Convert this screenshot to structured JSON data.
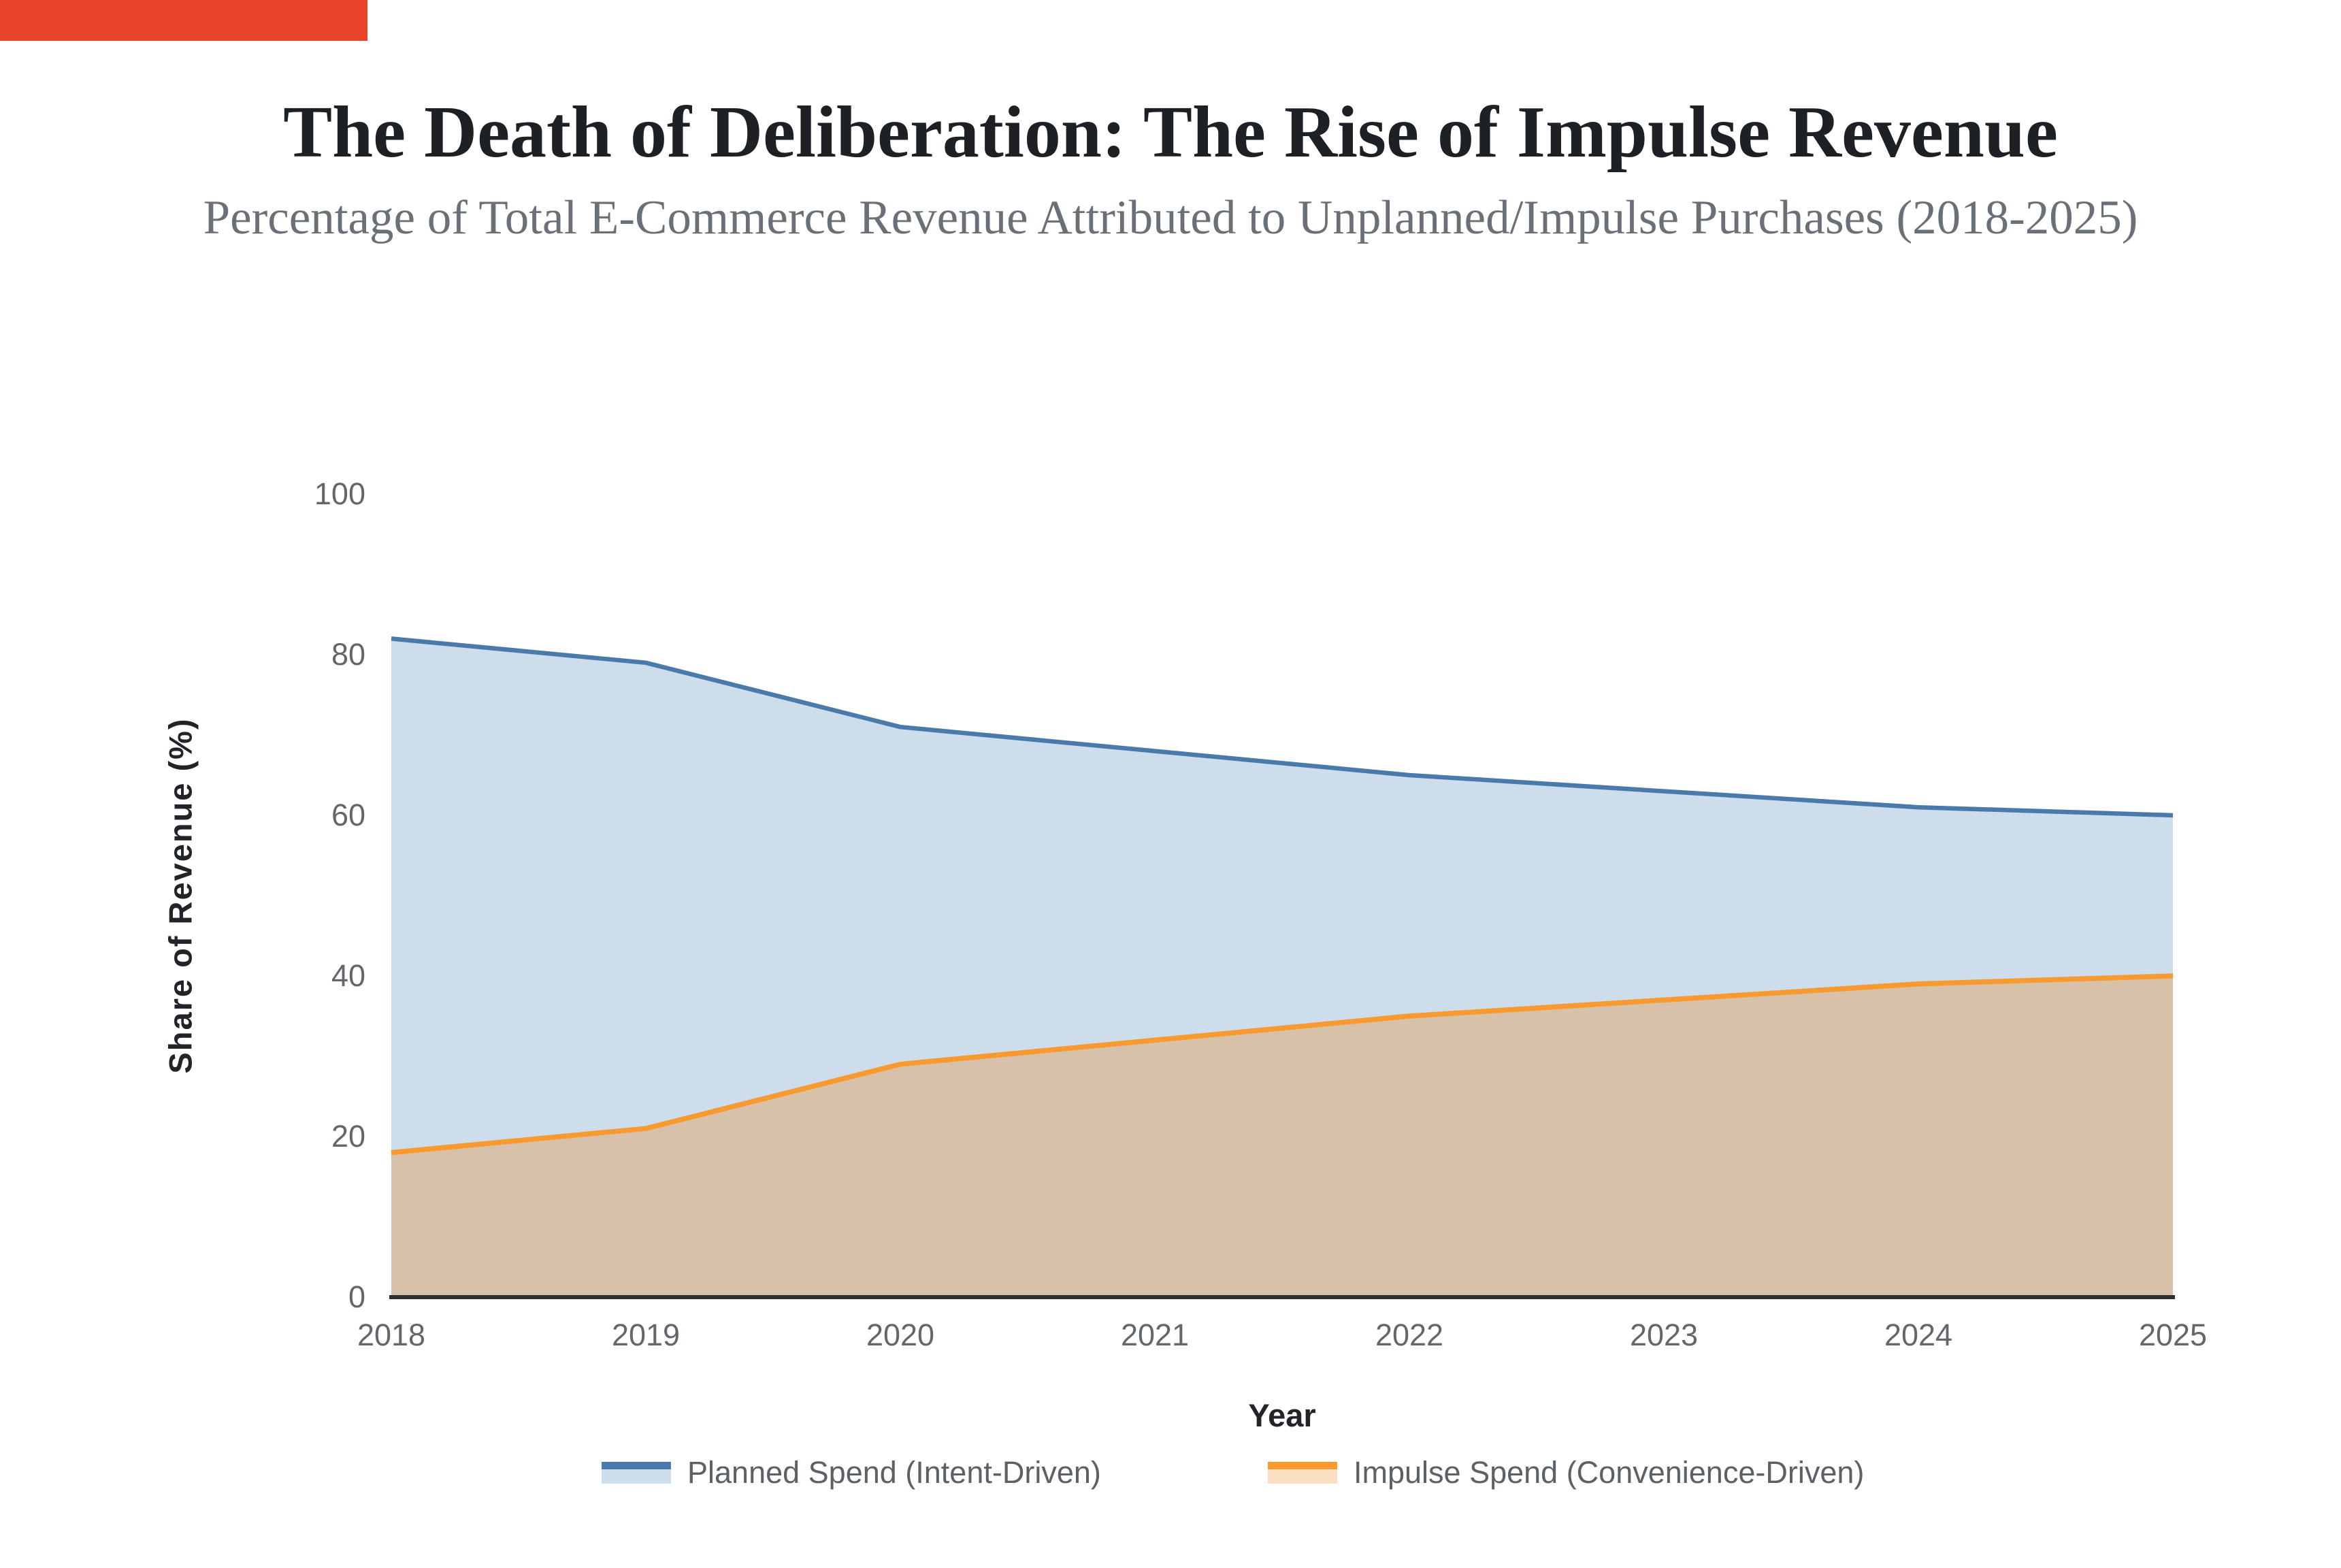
{
  "marker": {
    "color": "#e8432b"
  },
  "title": "The Death of Deliberation: The Rise of Impulse Revenue",
  "subtitle": "Percentage of Total E-Commerce Revenue Attributed to Unplanned/Impulse Purchases (2018-2025)",
  "chart_data": {
    "type": "area",
    "title": "The Death of Deliberation: The Rise of Impulse Revenue",
    "subtitle": "Percentage of Total E-Commerce Revenue Attributed to Unplanned/Impulse Purchases (2018-2025)",
    "x": [
      2018,
      2019,
      2020,
      2021,
      2022,
      2023,
      2024,
      2025
    ],
    "x_tick_labels": [
      "2018",
      "2019",
      "2020",
      "2021",
      "2022",
      "2023",
      "2024",
      "2025"
    ],
    "series": [
      {
        "name": "Planned Spend (Intent-Driven)",
        "values": [
          82,
          79,
          71,
          68,
          65,
          63,
          61,
          60
        ],
        "line_color": "#4a79ab",
        "fill_color": "#cdddec",
        "legend_fill": "#cdddec"
      },
      {
        "name": "Impulse Spend (Convenience-Driven)",
        "values": [
          18,
          21,
          29,
          32,
          35,
          37,
          39,
          40
        ],
        "line_color": "#f89a2f",
        "fill_color": "#d7c2a9",
        "legend_fill": "#fbdfc1"
      }
    ],
    "xlabel": "Year",
    "ylabel": "Share of Revenue (%)",
    "ylim": [
      0,
      100
    ],
    "yticks": [
      0,
      20,
      40,
      60,
      80,
      100
    ],
    "grid": false,
    "legend_position": "bottom-center",
    "axis_line_color": "#2e3134",
    "tick_text_color": "#61676d",
    "background_color": "#ffffff"
  }
}
